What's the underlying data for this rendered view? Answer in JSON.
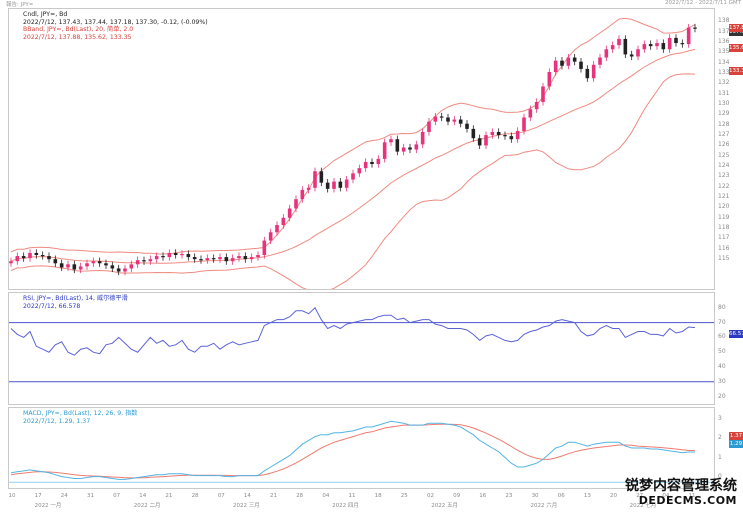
{
  "header": {
    "left_label": "報告: JPY=",
    "right_date": "2022/7/12 - 2022/7/11 GMT"
  },
  "legends": {
    "price": [
      "Cndl, JPY=, Bd",
      "2022/7/12, 137.43, 137.44, 137.18, 137.30, -0.12, (-0.09%)",
      "BBand, JPY=, Bd(Last), 20, 简单, 2.0",
      "2022/7/12, 137.88, 135.62, 133.35"
    ],
    "rsi": [
      "RSI, JPY=, Bd(Last), 14, 威尔德平滑",
      "2022/7/12, 66.578"
    ],
    "macd": [
      "MACD, JPY=, Bd(Last), 12, 26, 9, 指数",
      "2022/7/12, 1.29, 1.37"
    ]
  },
  "tags": {
    "price_last": "137.30",
    "bb_upper": "137.88",
    "bb_mid": "135.62",
    "bb_lower": "133.35",
    "rsi": "66.578",
    "macd_signal": "1.37",
    "macd": "1.29"
  },
  "colors": {
    "up": "#e8327c",
    "down": "#222222",
    "bband": "#f08a80",
    "rsi": "#5a62d8",
    "rsi_level": "#4b52d0",
    "macd": "#52b4e6",
    "signal": "#f07b70"
  },
  "x_labels_top": [
    "10",
    "17",
    "24",
    "31",
    "07",
    "14",
    "21",
    "28",
    "07",
    "14",
    "21",
    "28",
    "04",
    "11",
    "18",
    "25",
    "02",
    "09",
    "16",
    "23",
    "30",
    "06",
    "13",
    "20",
    "27",
    "04",
    "11"
  ],
  "x_labels_bottom": [
    "2022 一月",
    "2022 二月",
    "2022 三月",
    "2022 四月",
    "2022 五月",
    "2022 六月",
    "2022 七月"
  ],
  "watermark": {
    "line1": "锐梦内容管理系统",
    "line2": "DEDECMS.COM"
  },
  "chart_data": [
    {
      "type": "line",
      "title": "Cndl, JPY=, Bd",
      "y_ticks": [
        115,
        116,
        117,
        118,
        119,
        120,
        121,
        122,
        123,
        124,
        125,
        126,
        127,
        128,
        129,
        130,
        131,
        132,
        133,
        134,
        135,
        136,
        137,
        138
      ],
      "bband": {
        "period": 20,
        "stdev": 2.0,
        "last": {
          "upper": 137.88,
          "middle": 135.62,
          "lower": 133.35
        }
      },
      "last": {
        "open": 137.43,
        "high": 137.44,
        "low": 137.18,
        "close": 137.3,
        "change": -0.12,
        "change_pct": "-0.09%"
      },
      "close_series": [
        114.8,
        115.3,
        115.1,
        115.6,
        115.4,
        115.3,
        115.0,
        114.6,
        114.2,
        114.5,
        114.0,
        114.3,
        114.6,
        114.8,
        114.6,
        114.4,
        114.1,
        113.8,
        114.1,
        114.5,
        114.9,
        114.8,
        115.0,
        115.3,
        115.2,
        115.6,
        115.4,
        115.5,
        115.2,
        115.0,
        114.9,
        115.1,
        115.0,
        115.2,
        114.8,
        115.1,
        115.3,
        115.0,
        115.2,
        115.4,
        116.8,
        117.6,
        118.3,
        119.0,
        119.9,
        120.8,
        121.7,
        121.9,
        123.5,
        122.4,
        121.8,
        122.5,
        121.9,
        122.7,
        123.3,
        123.8,
        124.4,
        124.2,
        124.7,
        126.3,
        126.6,
        125.4,
        125.8,
        125.6,
        126.1,
        127.3,
        128.3,
        128.8,
        128.7,
        128.3,
        128.5,
        128.1,
        127.6,
        126.7,
        126.0,
        127.0,
        127.3,
        127.0,
        126.9,
        126.6,
        127.4,
        128.7,
        129.5,
        130.2,
        131.7,
        133.1,
        134.2,
        133.7,
        134.5,
        134.1,
        133.4,
        132.5,
        133.8,
        134.5,
        135.3,
        135.7,
        136.3,
        134.8,
        134.6,
        135.3,
        135.8,
        135.6,
        135.9,
        135.3,
        136.4,
        135.9,
        135.8,
        137.4,
        137.3
      ]
    },
    {
      "type": "line",
      "title": "RSI, JPY=, Bd(Last), 14",
      "y_ticks": [
        20,
        30,
        40,
        50,
        60,
        70,
        80
      ],
      "levels": [
        70,
        30
      ],
      "last": 66.578,
      "series": [
        66,
        62,
        60,
        64,
        54,
        52,
        50,
        55,
        57,
        50,
        48,
        52,
        53,
        50,
        49,
        55,
        56,
        60,
        56,
        52,
        50,
        55,
        60,
        56,
        58,
        54,
        55,
        58,
        52,
        50,
        54,
        54,
        56,
        52,
        55,
        57,
        55,
        56,
        57,
        58,
        68,
        70,
        72,
        72,
        74,
        78,
        78,
        76,
        80,
        72,
        66,
        68,
        66,
        69,
        70,
        71,
        72,
        72,
        74,
        75,
        75,
        72,
        73,
        70,
        71,
        72,
        72,
        69,
        68,
        66,
        66,
        66,
        65,
        62,
        58,
        61,
        62,
        60,
        58,
        57,
        58,
        62,
        64,
        65,
        67,
        68,
        71,
        72,
        71,
        70,
        64,
        61,
        62,
        66,
        68,
        66,
        66,
        60,
        62,
        64,
        64,
        62,
        62,
        61,
        66,
        63,
        64,
        67,
        66.6
      ]
    },
    {
      "type": "line",
      "title": "MACD, JPY=, Bd(Last), 12, 26, 9",
      "y_ticks": [
        0,
        1,
        2,
        3
      ],
      "last": {
        "macd": 1.29,
        "signal": 1.37
      },
      "macd_series": [
        0.2,
        0.25,
        0.3,
        0.35,
        0.3,
        0.25,
        0.2,
        0.1,
        0.0,
        -0.05,
        -0.1,
        -0.1,
        -0.05,
        0.0,
        0.0,
        -0.05,
        -0.1,
        -0.15,
        -0.15,
        -0.1,
        -0.05,
        0.0,
        0.05,
        0.1,
        0.1,
        0.15,
        0.15,
        0.15,
        0.1,
        0.05,
        0.05,
        0.05,
        0.05,
        0.05,
        0.0,
        0.0,
        0.05,
        0.05,
        0.05,
        0.05,
        0.3,
        0.5,
        0.7,
        0.9,
        1.1,
        1.4,
        1.7,
        1.9,
        2.1,
        2.2,
        2.2,
        2.3,
        2.3,
        2.35,
        2.4,
        2.5,
        2.6,
        2.6,
        2.7,
        2.8,
        2.9,
        2.85,
        2.8,
        2.7,
        2.7,
        2.7,
        2.8,
        2.8,
        2.8,
        2.75,
        2.7,
        2.6,
        2.4,
        2.2,
        1.9,
        1.7,
        1.5,
        1.3,
        1.0,
        0.7,
        0.5,
        0.5,
        0.6,
        0.7,
        0.9,
        1.2,
        1.5,
        1.6,
        1.8,
        1.8,
        1.7,
        1.6,
        1.7,
        1.75,
        1.8,
        1.8,
        1.8,
        1.6,
        1.5,
        1.5,
        1.5,
        1.45,
        1.45,
        1.4,
        1.35,
        1.3,
        1.25,
        1.29,
        1.29
      ],
      "signal_series": [
        0.1,
        0.15,
        0.18,
        0.22,
        0.25,
        0.25,
        0.24,
        0.22,
        0.18,
        0.14,
        0.1,
        0.06,
        0.04,
        0.03,
        0.02,
        0.0,
        -0.02,
        -0.04,
        -0.06,
        -0.07,
        -0.07,
        -0.06,
        -0.04,
        -0.02,
        0.0,
        0.02,
        0.04,
        0.06,
        0.07,
        0.07,
        0.07,
        0.07,
        0.07,
        0.06,
        0.06,
        0.05,
        0.05,
        0.05,
        0.05,
        0.05,
        0.1,
        0.18,
        0.28,
        0.4,
        0.55,
        0.72,
        0.9,
        1.1,
        1.3,
        1.5,
        1.65,
        1.8,
        1.9,
        2.0,
        2.1,
        2.2,
        2.3,
        2.35,
        2.45,
        2.55,
        2.6,
        2.65,
        2.7,
        2.7,
        2.7,
        2.7,
        2.72,
        2.74,
        2.75,
        2.75,
        2.74,
        2.72,
        2.65,
        2.55,
        2.42,
        2.28,
        2.12,
        1.96,
        1.78,
        1.58,
        1.38,
        1.2,
        1.06,
        0.96,
        0.9,
        0.9,
        0.98,
        1.08,
        1.2,
        1.3,
        1.38,
        1.44,
        1.5,
        1.54,
        1.58,
        1.62,
        1.66,
        1.66,
        1.64,
        1.6,
        1.58,
        1.56,
        1.54,
        1.51,
        1.48,
        1.45,
        1.41,
        1.37,
        1.37
      ]
    }
  ]
}
